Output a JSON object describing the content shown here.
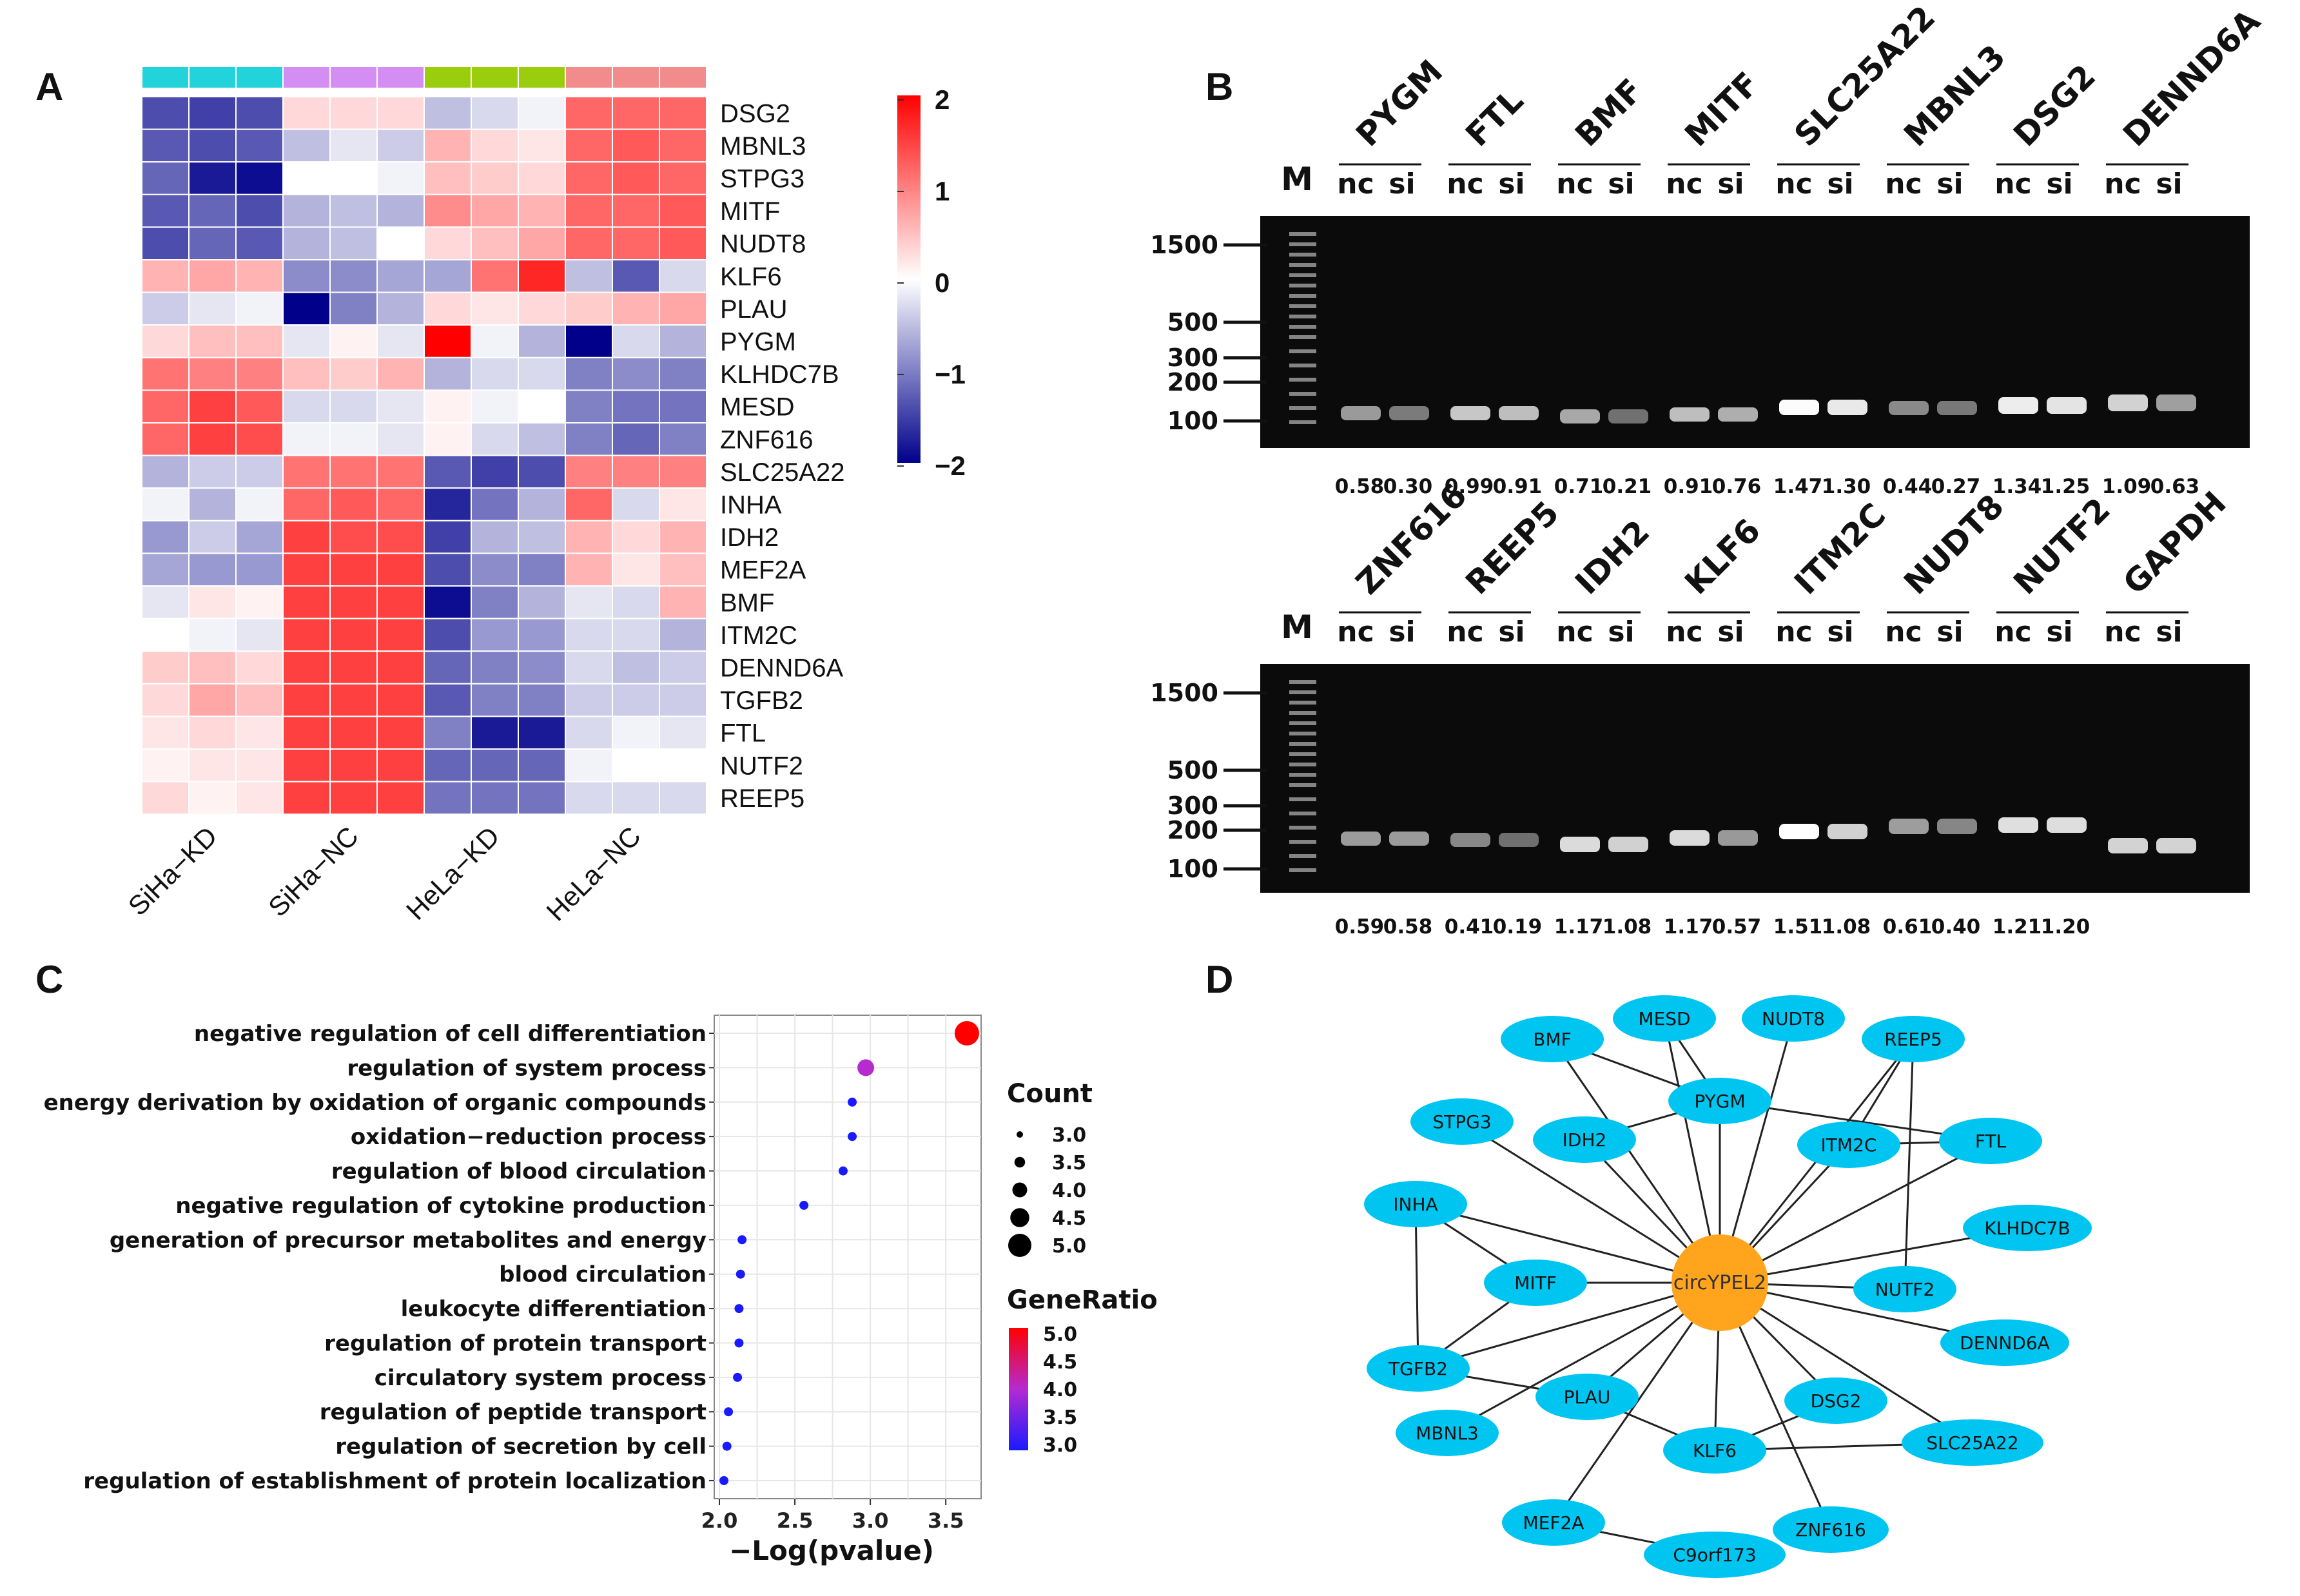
{
  "panels": {
    "A": "A",
    "B": "B",
    "C": "C",
    "D": "D"
  },
  "heatmap": {
    "genes": [
      "DSG2",
      "MBNL3",
      "STPG3",
      "MITF",
      "NUDT8",
      "KLF6",
      "PLAU",
      "PYGM",
      "KLHDC7B",
      "MESD",
      "ZNF616",
      "SLC25A22",
      "INHA",
      "IDH2",
      "MEF2A",
      "BMF",
      "ITM2C",
      "DENND6A",
      "TGFB2",
      "FTL",
      "NUTF2",
      "REEP5"
    ],
    "groups": [
      "SiHa−KD",
      "SiHa−NC",
      "HeLa−KD",
      "HeLa−NC"
    ],
    "group_colors": [
      "#22d3dc",
      "#d48df2",
      "#9acd0c",
      "#f28b8b"
    ],
    "colorbar_ticks": [
      "2",
      "1",
      "0",
      "−1",
      "−2"
    ],
    "colorbar_range": [
      -2,
      2
    ],
    "colors": {
      "high": "#ff0000",
      "mid": "#ffffff",
      "low": "#00008b"
    },
    "values": [
      [
        -1.4,
        -1.5,
        -1.4,
        0.3,
        0.3,
        0.3,
        -0.5,
        -0.3,
        -0.1,
        1.2,
        1.2,
        1.2
      ],
      [
        -1.3,
        -1.4,
        -1.3,
        -0.5,
        -0.2,
        -0.4,
        0.6,
        0.3,
        0.2,
        1.2,
        1.3,
        1.2
      ],
      [
        -1.2,
        -1.8,
        -1.9,
        0.0,
        0.0,
        -0.1,
        0.5,
        0.4,
        0.3,
        1.2,
        1.3,
        1.2
      ],
      [
        -1.3,
        -1.2,
        -1.4,
        -0.6,
        -0.5,
        -0.6,
        0.9,
        0.7,
        0.6,
        1.2,
        1.2,
        1.3
      ],
      [
        -1.4,
        -1.2,
        -1.3,
        -0.6,
        -0.5,
        0.0,
        0.3,
        0.5,
        0.7,
        1.2,
        1.2,
        1.3
      ],
      [
        0.6,
        0.7,
        0.6,
        -0.9,
        -0.9,
        -0.7,
        -0.7,
        1.1,
        1.7,
        -0.5,
        -1.3,
        -0.3
      ],
      [
        -0.4,
        -0.2,
        -0.1,
        -2.0,
        -1.0,
        -0.6,
        0.3,
        0.2,
        0.3,
        0.4,
        0.6,
        0.7
      ],
      [
        0.3,
        0.5,
        0.5,
        -0.2,
        0.1,
        -0.2,
        2.0,
        -0.1,
        -0.6,
        -2.0,
        -0.3,
        -0.6
      ],
      [
        1.1,
        1.0,
        1.0,
        0.5,
        0.4,
        0.6,
        -0.6,
        -0.3,
        -0.3,
        -1.0,
        -0.9,
        -1.0
      ],
      [
        1.2,
        1.5,
        1.3,
        -0.3,
        -0.3,
        -0.2,
        0.1,
        -0.1,
        0.0,
        -1.0,
        -1.1,
        -1.1
      ],
      [
        1.2,
        1.5,
        1.4,
        -0.1,
        -0.1,
        -0.2,
        0.1,
        -0.3,
        -0.5,
        -1.0,
        -1.2,
        -1.0
      ],
      [
        -0.6,
        -0.4,
        -0.4,
        1.1,
        1.1,
        1.1,
        -1.3,
        -1.5,
        -1.4,
        1.0,
        1.0,
        1.0
      ],
      [
        -0.1,
        -0.6,
        -0.1,
        1.2,
        1.3,
        1.2,
        -1.7,
        -1.1,
        -0.6,
        1.2,
        -0.3,
        0.2
      ],
      [
        -0.8,
        -0.4,
        -0.7,
        1.5,
        1.4,
        1.4,
        -1.5,
        -0.6,
        -0.5,
        0.6,
        0.3,
        0.6
      ],
      [
        -0.7,
        -0.8,
        -0.8,
        1.5,
        1.5,
        1.5,
        -1.4,
        -0.9,
        -1.0,
        0.6,
        0.2,
        0.5
      ],
      [
        -0.2,
        0.2,
        0.1,
        1.5,
        1.5,
        1.5,
        -1.9,
        -1.0,
        -0.6,
        -0.2,
        -0.3,
        0.6
      ],
      [
        0.0,
        -0.1,
        -0.2,
        1.5,
        1.5,
        1.5,
        -1.4,
        -0.8,
        -0.8,
        -0.3,
        -0.3,
        -0.6
      ],
      [
        0.4,
        0.5,
        0.3,
        1.5,
        1.5,
        1.5,
        -1.2,
        -1.0,
        -0.9,
        -0.3,
        -0.5,
        -0.4
      ],
      [
        0.3,
        0.7,
        0.5,
        1.5,
        1.5,
        1.5,
        -1.3,
        -1.0,
        -1.0,
        -0.4,
        -0.4,
        -0.4
      ],
      [
        0.2,
        0.3,
        0.2,
        1.5,
        1.5,
        1.5,
        -1.0,
        -1.8,
        -1.8,
        -0.3,
        -0.1,
        -0.2
      ],
      [
        0.1,
        0.2,
        0.2,
        1.5,
        1.5,
        1.5,
        -1.2,
        -1.2,
        -1.2,
        -0.1,
        0.0,
        0.0
      ],
      [
        0.3,
        0.1,
        0.2,
        1.5,
        1.5,
        1.5,
        -1.1,
        -1.1,
        -1.1,
        -0.3,
        -0.3,
        -0.3
      ]
    ]
  },
  "gel_top": {
    "marker_label": "M",
    "nc_label": "nc",
    "si_label": "si",
    "genes": [
      "PYGM",
      "FTL",
      "BMF",
      "MITF",
      "SLC25A22",
      "MBNL3",
      "DSG2",
      "DENND6A"
    ],
    "marker_sizes": [
      "1500",
      "500",
      "300",
      "200",
      "100"
    ],
    "quantities": [
      "0.58",
      "0.30",
      "0.99",
      "0.91",
      "0.71",
      "0.21",
      "0.91",
      "0.76",
      "1.47",
      "1.30",
      "0.44",
      "0.27",
      "1.34",
      "1.25",
      "1.09",
      "0.63"
    ]
  },
  "gel_bottom": {
    "marker_label": "M",
    "nc_label": "nc",
    "si_label": "si",
    "genes": [
      "ZNF616",
      "REEP5",
      "IDH2",
      "KLF6",
      "ITM2C",
      "NUDT8",
      "NUTF2",
      "GAPDH"
    ],
    "marker_sizes": [
      "1500",
      "500",
      "300",
      "200",
      "100"
    ],
    "quantities": [
      "0.59",
      "0.58",
      "0.41",
      "0.19",
      "1.17",
      "1.08",
      "1.17",
      "0.57",
      "1.51",
      "1.08",
      "0.61",
      "0.40",
      "1.21",
      "1.20"
    ]
  },
  "chart_data": {
    "type": "scatter",
    "title": "",
    "xlabel": "−Log(pvalue)",
    "ylabel": "",
    "xlim": [
      2.0,
      3.7
    ],
    "x_ticks": [
      "2.0",
      "2.5",
      "3.0",
      "3.5"
    ],
    "terms": [
      {
        "term": "negative regulation of cell differentiation",
        "x": 3.64,
        "count": 5,
        "gene_ratio": 5.0
      },
      {
        "term": "regulation of system process",
        "x": 2.97,
        "count": 4,
        "gene_ratio": 4.0
      },
      {
        "term": "energy derivation by oxidation of organic compounds",
        "x": 2.88,
        "count": 3,
        "gene_ratio": 3.0
      },
      {
        "term": "oxidation−reduction process",
        "x": 2.88,
        "count": 3,
        "gene_ratio": 3.0
      },
      {
        "term": "regulation of blood circulation",
        "x": 2.82,
        "count": 3,
        "gene_ratio": 3.0
      },
      {
        "term": "negative regulation of cytokine production",
        "x": 2.56,
        "count": 3,
        "gene_ratio": 3.0
      },
      {
        "term": "generation of precursor metabolites and energy",
        "x": 2.15,
        "count": 3,
        "gene_ratio": 3.0
      },
      {
        "term": "blood circulation",
        "x": 2.14,
        "count": 3,
        "gene_ratio": 3.0
      },
      {
        "term": "leukocyte differentiation",
        "x": 2.13,
        "count": 3,
        "gene_ratio": 3.0
      },
      {
        "term": "regulation of protein transport",
        "x": 2.13,
        "count": 3,
        "gene_ratio": 3.0
      },
      {
        "term": "circulatory system process",
        "x": 2.12,
        "count": 3,
        "gene_ratio": 3.0
      },
      {
        "term": "regulation of peptide transport",
        "x": 2.06,
        "count": 3,
        "gene_ratio": 3.0
      },
      {
        "term": "regulation of secretion by cell",
        "x": 2.05,
        "count": 3,
        "gene_ratio": 3.0
      },
      {
        "term": "regulation of establishment of protein localization",
        "x": 2.03,
        "count": 3,
        "gene_ratio": 3.0
      }
    ],
    "legend_count_title": "Count",
    "legend_count_values": [
      "3.0",
      "3.5",
      "4.0",
      "4.5",
      "5.0"
    ],
    "legend_ratio_title": "GeneRatio",
    "legend_ratio_values": [
      "5.0",
      "4.5",
      "4.0",
      "3.5",
      "3.0"
    ],
    "ratio_colors": {
      "high": "#ff0000",
      "low": "#1a1aff"
    }
  },
  "network": {
    "center": "circYPEL2",
    "center_color": "#ffa41c",
    "node_color": "#00c5f0",
    "nodes": [
      "BMF",
      "MESD",
      "NUDT8",
      "REEP5",
      "STPG3",
      "PYGM",
      "IDH2",
      "ITM2C",
      "FTL",
      "INHA",
      "KLHDC7B",
      "MITF",
      "NUTF2",
      "DENND6A",
      "TGFB2",
      "PLAU",
      "DSG2",
      "MBNL3",
      "KLF6",
      "SLC25A22",
      "MEF2A",
      "ZNF616",
      "C9orf173"
    ],
    "edges": [
      [
        "INHA",
        "TGFB2"
      ],
      [
        "INHA",
        "MITF"
      ],
      [
        "TGFB2",
        "MITF"
      ],
      [
        "TGFB2",
        "PLAU"
      ],
      [
        "PYGM",
        "IDH2"
      ],
      [
        "PYGM",
        "FTL"
      ],
      [
        "ITM2C",
        "FTL"
      ],
      [
        "ITM2C",
        "REEP5"
      ],
      [
        "NUTF2",
        "REEP5"
      ],
      [
        "PLAU",
        "KLF6"
      ],
      [
        "DSG2",
        "KLF6"
      ],
      [
        "KLF6",
        "SLC25A22"
      ],
      [
        "MEF2A",
        "C9orf173"
      ],
      [
        "BMF",
        "PYGM"
      ],
      [
        "MESD",
        "PYGM"
      ]
    ]
  }
}
